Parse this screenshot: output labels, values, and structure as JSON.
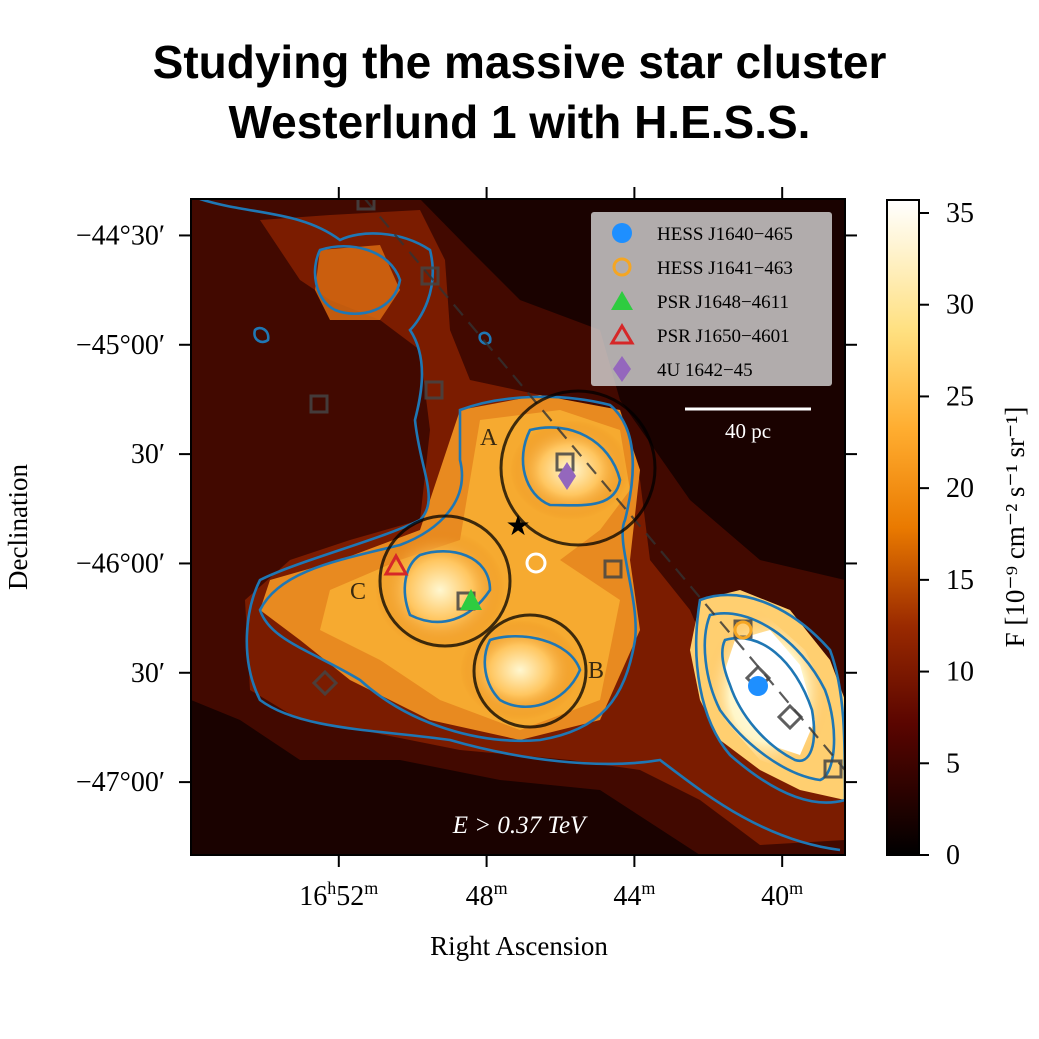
{
  "title": {
    "line1": "Studying the massive star cluster",
    "line2": "Westerlund 1 with H.E.S.S."
  },
  "chart_data": {
    "type": "heatmap",
    "xlabel": "Right Ascension",
    "ylabel": "Declination",
    "colorbar_label": "F [10⁻⁹ cm⁻² s⁻¹ sr⁻¹]",
    "colormap": "afmhot",
    "colorbar_range": [
      0,
      35
    ],
    "colorbar_ticks": [
      "0",
      "5",
      "10",
      "15",
      "20",
      "25",
      "30",
      "35"
    ],
    "x_ticks": [
      {
        "ra_min": 52,
        "label_main": "16",
        "sup1": "h",
        "mid": "52",
        "sup2": "m"
      },
      {
        "ra_min": 48,
        "label_main": "",
        "sup1": "",
        "mid": "48",
        "sup2": "m"
      },
      {
        "ra_min": 44,
        "label_main": "",
        "sup1": "",
        "mid": "44",
        "sup2": "m"
      },
      {
        "ra_min": 40,
        "label_main": "",
        "sup1": "",
        "mid": "40",
        "sup2": "m"
      }
    ],
    "x_range_min": [
      56.0,
      38.3
    ],
    "y_ticks": [
      {
        "dec_arcmin": -2670,
        "label": "−44°30′"
      },
      {
        "dec_arcmin": -2700,
        "label": "−45°00′"
      },
      {
        "dec_arcmin": -2730,
        "label": "30′"
      },
      {
        "dec_arcmin": -2760,
        "label": "−46°00′"
      },
      {
        "dec_arcmin": -2790,
        "label": "30′"
      },
      {
        "dec_arcmin": -2820,
        "label": "−47°00′"
      }
    ],
    "y_range_arcmin": [
      -2660,
      -2840
    ],
    "energy_label": "E > 0.37 TeV",
    "scale_bar_label": "40 pc",
    "regions": [
      {
        "name": "A",
        "ra": 45.4,
        "dec": -2734
      },
      {
        "name": "B",
        "ra": 46.8,
        "dec": -2790
      },
      {
        "name": "C",
        "ra": 49.2,
        "dec": -2765
      }
    ],
    "legend": [
      {
        "label": "HESS J1640−465",
        "marker": "filled-circle",
        "color": "#1e8fff"
      },
      {
        "label": "HESS J1641−463",
        "marker": "open-circle",
        "color": "#f5a623"
      },
      {
        "label": "PSR J1648−4611",
        "marker": "filled-triangle",
        "color": "#2ecc40"
      },
      {
        "label": "PSR J1650−4601",
        "marker": "open-triangle",
        "color": "#d62728"
      },
      {
        "label": "4U 1642−45",
        "marker": "filled-diamond",
        "color": "#9467bd"
      }
    ],
    "legend_position": "top-right",
    "sources": [
      {
        "name": "HESS J1640−465",
        "ra": 40.4,
        "dec": -2795
      },
      {
        "name": "HESS J1641−463",
        "ra": 41.0,
        "dec": -2778
      },
      {
        "name": "PSR J1648−4611",
        "ra": 48.3,
        "dec": -2770
      },
      {
        "name": "PSR J1650−4601",
        "ra": 50.3,
        "dec": -2760
      },
      {
        "name": "4U 1642−45",
        "ra": 45.7,
        "dec": -2743
      },
      {
        "name": "Westerlund 1",
        "ra": 47.1,
        "dec": -2753
      }
    ],
    "colors": {
      "contour": "#1f77b4",
      "circle": "#000000",
      "square_marker": "#444444",
      "diamond_marker": "#444444"
    }
  }
}
